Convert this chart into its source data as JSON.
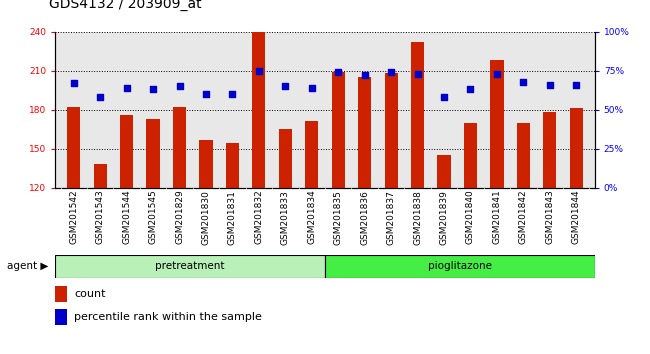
{
  "title": "GDS4132 / 203909_at",
  "samples": [
    "GSM201542",
    "GSM201543",
    "GSM201544",
    "GSM201545",
    "GSM201829",
    "GSM201830",
    "GSM201831",
    "GSM201832",
    "GSM201833",
    "GSM201834",
    "GSM201835",
    "GSM201836",
    "GSM201837",
    "GSM201838",
    "GSM201839",
    "GSM201840",
    "GSM201841",
    "GSM201842",
    "GSM201843",
    "GSM201844"
  ],
  "counts": [
    182,
    138,
    176,
    173,
    182,
    157,
    154,
    240,
    165,
    171,
    209,
    205,
    208,
    232,
    145,
    170,
    218,
    170,
    178,
    181
  ],
  "percentile_ranks": [
    67,
    58,
    64,
    63,
    65,
    60,
    60,
    75,
    65,
    64,
    74,
    72,
    74,
    73,
    58,
    63,
    73,
    68,
    66,
    66
  ],
  "group_labels": [
    "pretreatment",
    "pioglitazone"
  ],
  "group_colors": [
    "#b8f0b8",
    "#44ee44"
  ],
  "group_split": 10,
  "ylim_left": [
    120,
    240
  ],
  "ylim_right": [
    0,
    100
  ],
  "yticks_left": [
    120,
    150,
    180,
    210,
    240
  ],
  "yticks_right": [
    0,
    25,
    50,
    75,
    100
  ],
  "yticklabels_right": [
    "0%",
    "25%",
    "50%",
    "75%",
    "100%"
  ],
  "bar_color": "#cc2200",
  "dot_color": "#0000cc",
  "bar_width": 0.5,
  "plot_bg": "#e8e8e8",
  "title_fontsize": 10,
  "tick_fontsize": 6.5,
  "legend_items": [
    "count",
    "percentile rank within the sample"
  ],
  "agent_label": "agent"
}
